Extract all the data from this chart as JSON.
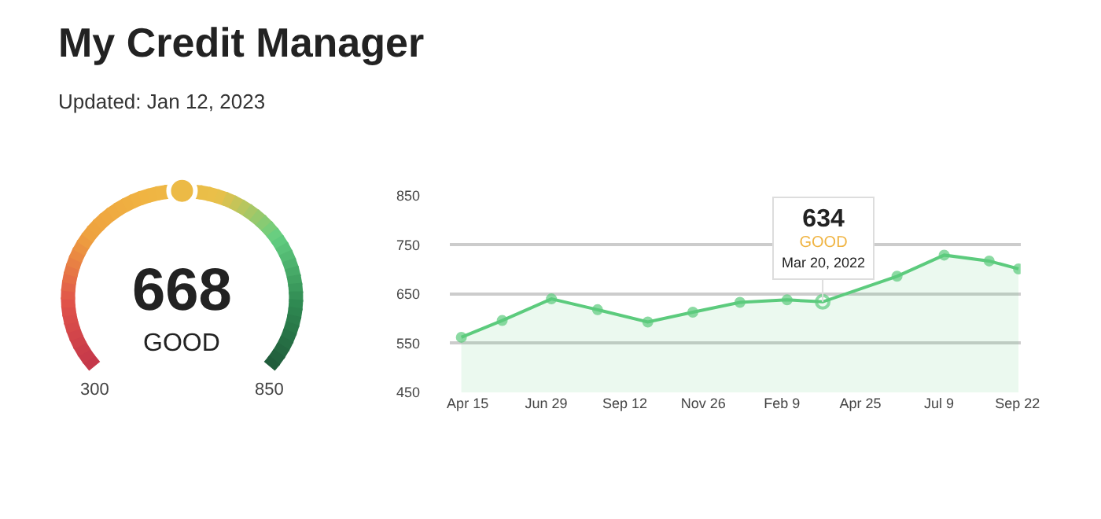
{
  "chart_data": [
    {
      "type": "other",
      "title": "My Credit Manager",
      "subtitle": "Updated: Jan 12, 2023",
      "annotations": [
        "668",
        "GOOD",
        "300",
        "850"
      ]
    },
    {
      "type": "area",
      "x": [
        "2021-04-09",
        "2021-05-18",
        "2021-07-04",
        "2021-08-17",
        "2021-10-04",
        "2021-11-16",
        "2021-12-31",
        "2022-02-14",
        "2022-03-20",
        "2022-05-30",
        "2022-07-14",
        "2022-08-26",
        "2022-09-23"
      ],
      "series": [
        {
          "color": "#5ccb7d",
          "values": [
            562,
            596,
            640,
            618,
            593,
            613,
            633,
            638,
            634,
            686,
            729,
            717,
            701
          ]
        }
      ],
      "xlim": [
        "2021-03-29",
        "2022-09-25"
      ],
      "xticks": [
        {
          "value": "2021-04-15",
          "label": "Apr 15"
        },
        {
          "value": "2021-06-29",
          "label": "Jun 29"
        },
        {
          "value": "2021-09-12",
          "label": "Sep 12"
        },
        {
          "value": "2021-11-26",
          "label": "Nov 26"
        },
        {
          "value": "2022-02-09",
          "label": "Feb 9"
        },
        {
          "value": "2022-04-25",
          "label": "Apr 25"
        },
        {
          "value": "2022-07-09",
          "label": "Jul 9"
        },
        {
          "value": "2022-09-22",
          "label": "Sep 22"
        }
      ],
      "ylim": [
        450,
        850
      ],
      "yticks": [
        450,
        550,
        650,
        750,
        850
      ],
      "grid": "y",
      "marker": "circle",
      "line_style": "solid",
      "annotations": [
        {
          "text": "634\nGOOD\nMar 20, 2022",
          "x": "2022-03-20",
          "y": 634
        }
      ]
    }
  ]
}
